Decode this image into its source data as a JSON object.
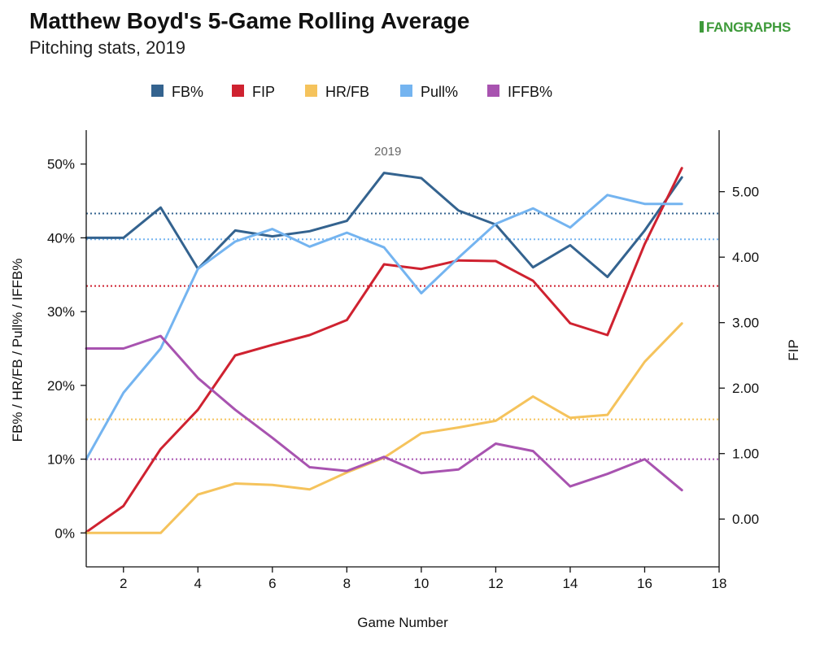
{
  "chart_data": {
    "type": "line",
    "title": "Matthew Boyd's 5-Game Rolling Average",
    "subtitle": "Pitching stats, 2019",
    "brand": "FANGRAPHS",
    "annotation": "2019",
    "xlabel": "Game Number",
    "ylabel_left": "FB% / HR/FB / Pull% / IFFB%",
    "ylabel_right": "FIP",
    "xlim": [
      1,
      18
    ],
    "xticks": [
      2,
      4,
      6,
      8,
      10,
      12,
      14,
      16,
      18
    ],
    "ylim_left": [
      -4.6,
      54.6
    ],
    "yticks_left": [
      {
        "value": 0,
        "label": "0%"
      },
      {
        "value": 10,
        "label": "10%"
      },
      {
        "value": 20,
        "label": "20%"
      },
      {
        "value": 30,
        "label": "30%"
      },
      {
        "value": 40,
        "label": "40%"
      },
      {
        "value": 50,
        "label": "50%"
      }
    ],
    "ylim_right": [
      -0.73,
      5.94
    ],
    "yticks_right": [
      {
        "value": 0,
        "label": "0.00"
      },
      {
        "value": 1,
        "label": "1.00"
      },
      {
        "value": 2,
        "label": "2.00"
      },
      {
        "value": 3,
        "label": "3.00"
      },
      {
        "value": 4,
        "label": "4.00"
      },
      {
        "value": 5,
        "label": "5.00"
      }
    ],
    "legend_position": "top",
    "grid": false,
    "x": [
      1,
      2,
      3,
      4,
      5,
      6,
      7,
      8,
      9,
      10,
      11,
      12,
      13,
      14,
      15,
      16,
      17
    ],
    "series": [
      {
        "name": "FB%",
        "color": "#34638f",
        "axis": "left",
        "values": [
          40.0,
          40.0,
          44.1,
          35.8,
          41.0,
          40.2,
          40.9,
          42.3,
          48.8,
          48.1,
          43.7,
          41.8,
          36.0,
          39.0,
          34.7,
          41.0,
          48.2
        ],
        "average": 43.3
      },
      {
        "name": "FIP",
        "color": "#cf2230",
        "axis": "right",
        "values": [
          -0.2,
          0.2,
          1.07,
          1.67,
          2.5,
          2.66,
          2.81,
          3.04,
          3.89,
          3.82,
          3.95,
          3.94,
          3.64,
          2.99,
          2.81,
          4.2,
          5.36
        ],
        "average": 3.56
      },
      {
        "name": "HR/FB",
        "color": "#f5c35c",
        "axis": "left",
        "values": [
          0.0,
          0.0,
          0.0,
          5.2,
          6.7,
          6.5,
          5.9,
          8.2,
          10.2,
          13.5,
          14.3,
          15.2,
          18.5,
          15.6,
          16.0,
          23.2,
          28.4
        ],
        "average": 15.4
      },
      {
        "name": "Pull%",
        "color": "#74b4f0",
        "axis": "left",
        "values": [
          10.0,
          19.0,
          25.0,
          35.8,
          39.5,
          41.2,
          38.8,
          40.7,
          38.7,
          32.5,
          37.3,
          41.9,
          44.0,
          41.4,
          45.8,
          44.6,
          44.6
        ],
        "average": 39.8
      },
      {
        "name": "IFFB%",
        "color": "#a853b0",
        "axis": "left",
        "values": [
          25.0,
          25.0,
          26.7,
          21.0,
          16.7,
          12.9,
          8.9,
          8.4,
          10.3,
          8.1,
          8.6,
          12.1,
          11.1,
          6.3,
          8.0,
          10.0,
          5.8
        ],
        "average": 10.0
      }
    ]
  }
}
